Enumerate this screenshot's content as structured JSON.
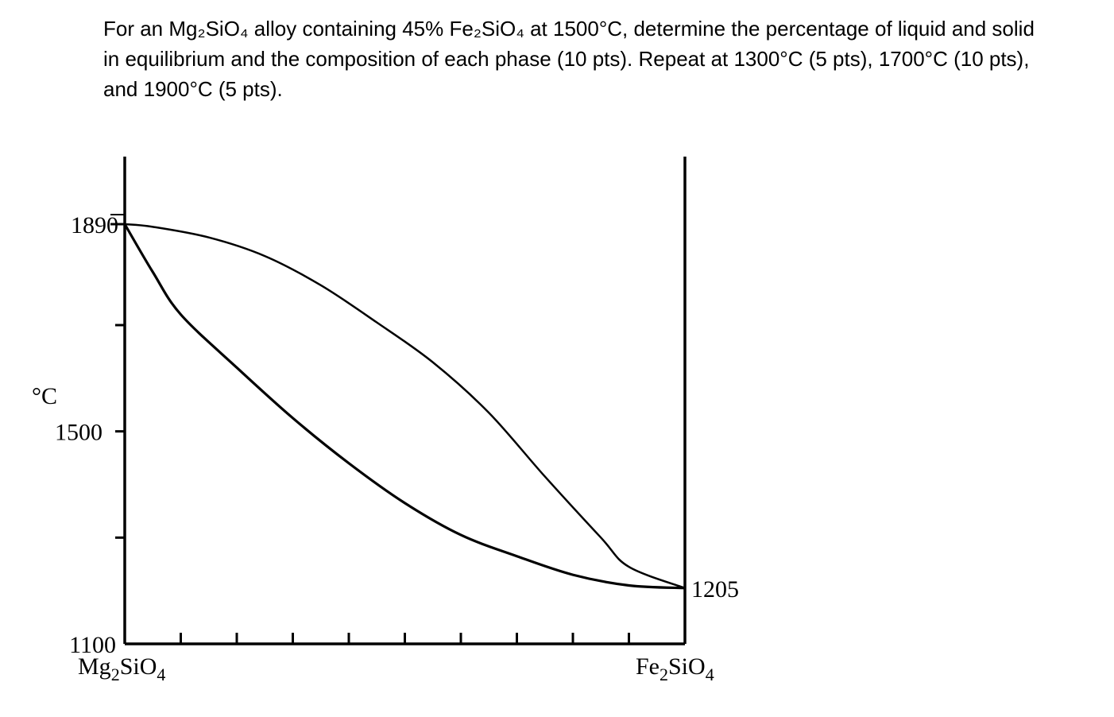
{
  "problem_text": "For an Mg₂SiO₄ alloy containing 45% Fe₂SiO₄ at 1500°C, determine the percentage of liquid and solid in equilibrium and the composition of each phase (10 pts). Repeat at 1300°C (5 pts), 1700°C (10 pts), and 1900°C (5 pts).",
  "chart_data": {
    "type": "line",
    "title": "",
    "xlabel_left": {
      "base": "Mg",
      "sub1": "2",
      "mid": "SiO",
      "sub2": "4"
    },
    "xlabel_right": {
      "base": "Fe",
      "sub1": "2",
      "mid": "SiO",
      "sub2": "4"
    },
    "ylabel": "°C",
    "ylim": [
      1100,
      2030
    ],
    "xlim": [
      0,
      100
    ],
    "y_tick_labels": [
      {
        "value": 1890,
        "label": "1890"
      },
      {
        "value": 1500,
        "label": "1500"
      },
      {
        "value": 1100,
        "label": "1100"
      }
    ],
    "y_tick_marks": [
      1890,
      1700,
      1500,
      1300
    ],
    "x_tick_marks": [
      10,
      20,
      30,
      40,
      50,
      60,
      70,
      80,
      90
    ],
    "right_label": {
      "value": 1205,
      "label": "1205"
    },
    "series": [
      {
        "points": [
          [
            0,
            1890
          ],
          [
            5,
            1885
          ],
          [
            15,
            1865
          ],
          [
            25,
            1830
          ],
          [
            35,
            1775
          ],
          [
            45,
            1705
          ],
          [
            55,
            1630
          ],
          [
            65,
            1535
          ],
          [
            75,
            1415
          ],
          [
            85,
            1300
          ],
          [
            90,
            1245
          ],
          [
            100,
            1205
          ]
        ]
      },
      {
        "points": [
          [
            0,
            1890
          ],
          [
            5,
            1800
          ],
          [
            10,
            1720
          ],
          [
            20,
            1620
          ],
          [
            30,
            1525
          ],
          [
            40,
            1440
          ],
          [
            50,
            1365
          ],
          [
            60,
            1305
          ],
          [
            70,
            1265
          ],
          [
            80,
            1230
          ],
          [
            90,
            1210
          ],
          [
            100,
            1205
          ]
        ]
      }
    ]
  }
}
